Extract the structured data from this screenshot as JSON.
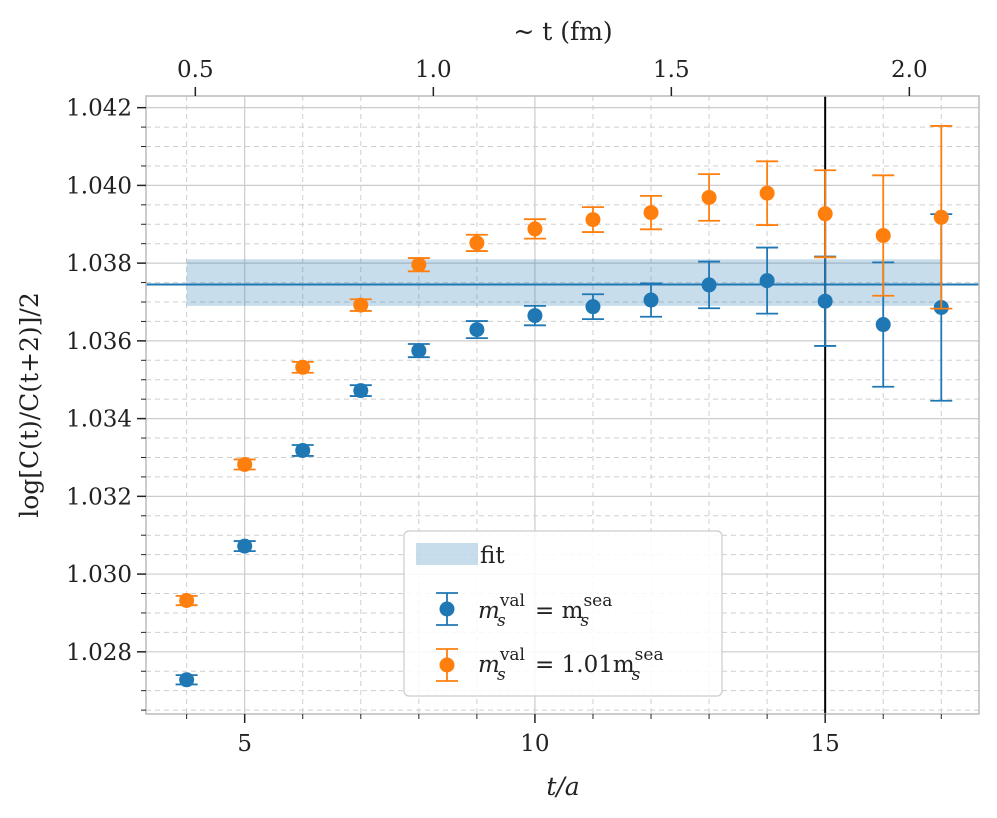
{
  "chart_data": {
    "type": "scatter",
    "xlabel": "t/a",
    "ylabel": "log[C(t)/C(t+2)]/2",
    "top_xlabel": "~ t (fm)",
    "xlim": [
      3.3,
      17.65
    ],
    "ylim": [
      1.0264,
      1.0423
    ],
    "x_ticks": [
      5,
      10,
      15
    ],
    "y_ticks": [
      1.028,
      1.03,
      1.032,
      1.034,
      1.036,
      1.038,
      1.04,
      1.042
    ],
    "top_ticks": [
      {
        "x": 4.15,
        "label": "0.5"
      },
      {
        "x": 8.25,
        "label": "1.0"
      },
      {
        "x": 12.35,
        "label": "1.5"
      },
      {
        "x": 16.45,
        "label": "2.0"
      }
    ],
    "grid": true,
    "vline_x": 15,
    "fit": {
      "label": "fit",
      "x_range": [
        4,
        17
      ],
      "value": 1.03745,
      "band": [
        1.0369,
        1.0381
      ],
      "color": "#1f77b4"
    },
    "series": [
      {
        "name_prefix": "m",
        "name_sup1": "val",
        "name_sub": "s",
        "name_mid": " = m",
        "name_sup2": "sea",
        "name_sub2": "s",
        "name_coef": "",
        "color": "#1f77b4",
        "x": [
          4,
          5,
          6,
          7,
          8,
          9,
          10,
          11,
          12,
          13,
          14,
          15,
          16,
          17
        ],
        "y": [
          1.02728,
          1.03072,
          1.03318,
          1.03472,
          1.03575,
          1.03629,
          1.03665,
          1.03688,
          1.03705,
          1.03744,
          1.03755,
          1.03702,
          1.03642,
          1.03686
        ],
        "err": [
          0.00012,
          0.00013,
          0.00014,
          0.00014,
          0.00017,
          0.00022,
          0.00025,
          0.00032,
          0.00043,
          0.0006,
          0.00085,
          0.00115,
          0.0016,
          0.0024
        ]
      },
      {
        "name_prefix": "m",
        "name_sup1": "val",
        "name_sub": "s",
        "name_mid": " = 1.01m",
        "name_sup2": "sea",
        "name_sub2": "s",
        "name_coef": "",
        "color": "#ff7f0e",
        "x": [
          4,
          5,
          6,
          7,
          8,
          9,
          10,
          11,
          12,
          13,
          14,
          15,
          16,
          17
        ],
        "y": [
          1.02932,
          1.03282,
          1.03532,
          1.03692,
          1.03796,
          1.03852,
          1.03888,
          1.03912,
          1.0393,
          1.03969,
          1.0398,
          1.03927,
          1.03871,
          1.03918
        ],
        "err": [
          0.00012,
          0.00013,
          0.00014,
          0.00015,
          0.00017,
          0.00021,
          0.00025,
          0.00032,
          0.00043,
          0.0006,
          0.00082,
          0.00112,
          0.00155,
          0.00235
        ]
      }
    ],
    "legend_position": "lower-center"
  }
}
